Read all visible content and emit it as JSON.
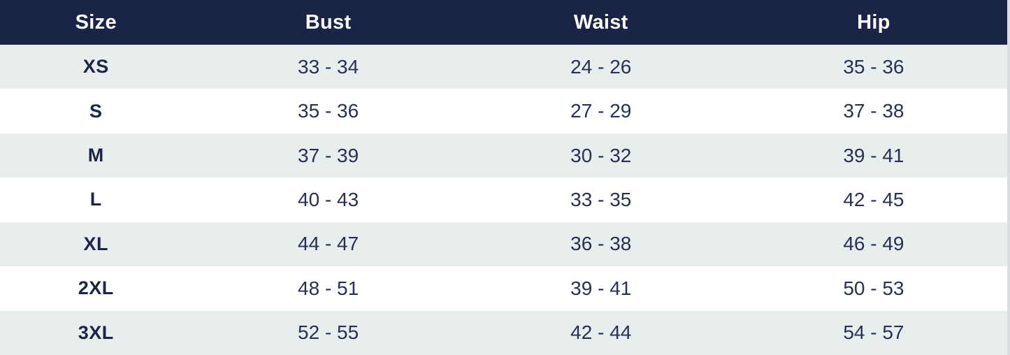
{
  "theme": {
    "header_bg": "#1a2447",
    "header_text": "#ffffff",
    "stripe_bg": "#e8edee",
    "row_bg": "#ffffff",
    "label_color": "#1b2548",
    "value_color": "#263155",
    "scrollbar_color": "#d9dde0"
  },
  "table": {
    "columns": [
      "Size",
      "Bust",
      "Waist",
      "Hip"
    ],
    "rows": [
      {
        "size": "XS",
        "bust": "33 - 34",
        "waist": "24 - 26",
        "hip": "35 - 36"
      },
      {
        "size": "S",
        "bust": "35 - 36",
        "waist": "27 - 29",
        "hip": "37 - 38"
      },
      {
        "size": "M",
        "bust": "37 - 39",
        "waist": "30 - 32",
        "hip": "39 - 41"
      },
      {
        "size": "L",
        "bust": "40 - 43",
        "waist": "33 - 35",
        "hip": "42 - 45"
      },
      {
        "size": "XL",
        "bust": "44 - 47",
        "waist": "36 - 38",
        "hip": "46 - 49"
      },
      {
        "size": "2XL",
        "bust": "48 - 51",
        "waist": "39 - 41",
        "hip": "50 - 53"
      },
      {
        "size": "3XL",
        "bust": "52 - 55",
        "waist": "42 - 44",
        "hip": "54 - 57"
      }
    ]
  }
}
